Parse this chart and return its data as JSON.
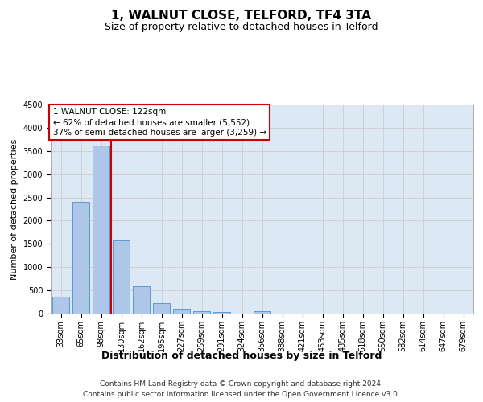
{
  "title": "1, WALNUT CLOSE, TELFORD, TF4 3TA",
  "subtitle": "Size of property relative to detached houses in Telford",
  "xlabel": "Distribution of detached houses by size in Telford",
  "ylabel": "Number of detached properties",
  "footer_line1": "Contains HM Land Registry data © Crown copyright and database right 2024.",
  "footer_line2": "Contains public sector information licensed under the Open Government Licence v3.0.",
  "categories": [
    "33sqm",
    "65sqm",
    "98sqm",
    "130sqm",
    "162sqm",
    "195sqm",
    "227sqm",
    "259sqm",
    "291sqm",
    "324sqm",
    "356sqm",
    "388sqm",
    "421sqm",
    "453sqm",
    "485sqm",
    "518sqm",
    "550sqm",
    "582sqm",
    "614sqm",
    "647sqm",
    "679sqm"
  ],
  "values": [
    370,
    2400,
    3620,
    1580,
    590,
    220,
    100,
    60,
    40,
    0,
    60,
    0,
    0,
    0,
    0,
    0,
    0,
    0,
    0,
    0,
    0
  ],
  "bar_color": "#aec6e8",
  "bar_edge_color": "#5a9ad4",
  "grid_color": "#cccccc",
  "plot_bg_color": "#dce9f5",
  "vline_x": 2.5,
  "vline_color": "#cc0000",
  "annotation_line1": "1 WALNUT CLOSE: 122sqm",
  "annotation_line2": "← 62% of detached houses are smaller (5,552)",
  "annotation_line3": "37% of semi-detached houses are larger (3,259) →",
  "annotation_box_color": "#ffffff",
  "annotation_border_color": "#cc0000",
  "ylim": [
    0,
    4500
  ],
  "yticks": [
    0,
    500,
    1000,
    1500,
    2000,
    2500,
    3000,
    3500,
    4000,
    4500
  ],
  "title_fontsize": 11,
  "subtitle_fontsize": 9,
  "xlabel_fontsize": 9,
  "ylabel_fontsize": 8,
  "tick_fontsize": 7,
  "annotation_fontsize": 7.5,
  "footer_fontsize": 6.5
}
